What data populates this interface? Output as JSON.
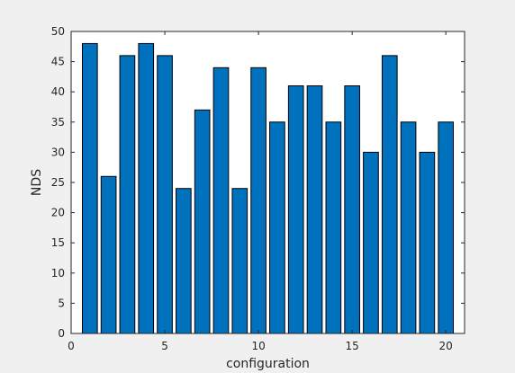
{
  "chart_data": {
    "type": "bar",
    "title": "",
    "xlabel": "configuration",
    "ylabel": "NDS",
    "x": [
      1,
      2,
      3,
      4,
      5,
      6,
      7,
      8,
      9,
      10,
      11,
      12,
      13,
      14,
      15,
      16,
      17,
      18,
      19,
      20
    ],
    "values": [
      48,
      26,
      46,
      48,
      46,
      24,
      37,
      44,
      24,
      44,
      35,
      41,
      41,
      35,
      41,
      30,
      46,
      35,
      30,
      35
    ],
    "xlim": [
      0,
      21
    ],
    "ylim": [
      0,
      50
    ],
    "xticks": [
      "0",
      "5",
      "10",
      "15",
      "20"
    ],
    "yticks": [
      "0",
      "5",
      "10",
      "15",
      "20",
      "25",
      "30",
      "35",
      "40",
      "45",
      "50"
    ],
    "grid": false,
    "colors": {
      "bar": "#0072bd",
      "edge": "#000000",
      "axes_bg": "#ffffff",
      "figure_bg": "#f0f0f0"
    }
  }
}
